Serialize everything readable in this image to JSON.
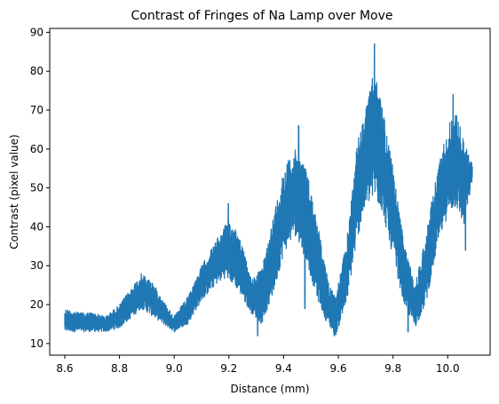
{
  "chart_data": {
    "type": "line",
    "title": "Contrast of Fringes of Na Lamp over Move",
    "xlabel": "Distance (mm)",
    "ylabel": "Contrast (pixel value)",
    "xlim": [
      8.545,
      10.155
    ],
    "ylim": [
      7,
      91
    ],
    "x_ticks": [
      8.6,
      8.8,
      9.0,
      9.2,
      9.4,
      9.6,
      9.8,
      10.0
    ],
    "x_tick_labels": [
      "8.6",
      "8.8",
      "9.0",
      "9.2",
      "9.4",
      "9.6",
      "9.8",
      "10.0"
    ],
    "y_ticks": [
      10,
      20,
      30,
      40,
      50,
      60,
      70,
      80,
      90
    ],
    "y_tick_labels": [
      "10",
      "20",
      "30",
      "40",
      "50",
      "60",
      "70",
      "80",
      "90"
    ],
    "grid": false,
    "legend": null,
    "series": [
      {
        "color": "#1f77b4",
        "envelope": {
          "x": [
            8.6,
            8.65,
            8.7,
            8.75,
            8.8,
            8.85,
            8.88,
            8.92,
            8.96,
            9.0,
            9.05,
            9.1,
            9.15,
            9.19,
            9.23,
            9.28,
            9.32,
            9.36,
            9.4,
            9.44,
            9.48,
            9.52,
            9.56,
            9.59,
            9.63,
            9.67,
            9.7,
            9.73,
            9.76,
            9.8,
            9.84,
            9.88,
            9.92,
            9.96,
            10.0,
            10.03,
            10.06,
            10.09
          ],
          "upper": [
            19,
            18,
            18,
            17,
            20,
            25,
            28,
            26,
            21,
            17,
            22,
            30,
            36,
            41,
            40,
            27,
            29,
            42,
            55,
            60,
            56,
            43,
            27,
            22,
            36,
            62,
            70,
            80,
            72,
            55,
            36,
            25,
            38,
            54,
            66,
            70,
            62,
            56
          ],
          "lower": [
            13,
            13,
            13,
            13,
            14,
            17,
            19,
            17,
            15,
            13,
            15,
            21,
            25,
            27,
            24,
            18,
            15,
            22,
            33,
            38,
            32,
            22,
            15,
            12,
            20,
            37,
            45,
            47,
            44,
            32,
            20,
            14,
            20,
            34,
            43,
            45,
            40,
            52
          ],
          "spikes": [
            {
              "x": 9.455,
              "y": 66
            },
            {
              "x": 9.478,
              "y": 19
            },
            {
              "x": 9.732,
              "y": 87
            },
            {
              "x": 9.585,
              "y": 12
            },
            {
              "x": 9.855,
              "y": 13
            },
            {
              "x": 10.065,
              "y": 34
            },
            {
              "x": 10.02,
              "y": 74
            },
            {
              "x": 9.198,
              "y": 46
            },
            {
              "x": 9.305,
              "y": 12
            }
          ]
        }
      }
    ]
  }
}
